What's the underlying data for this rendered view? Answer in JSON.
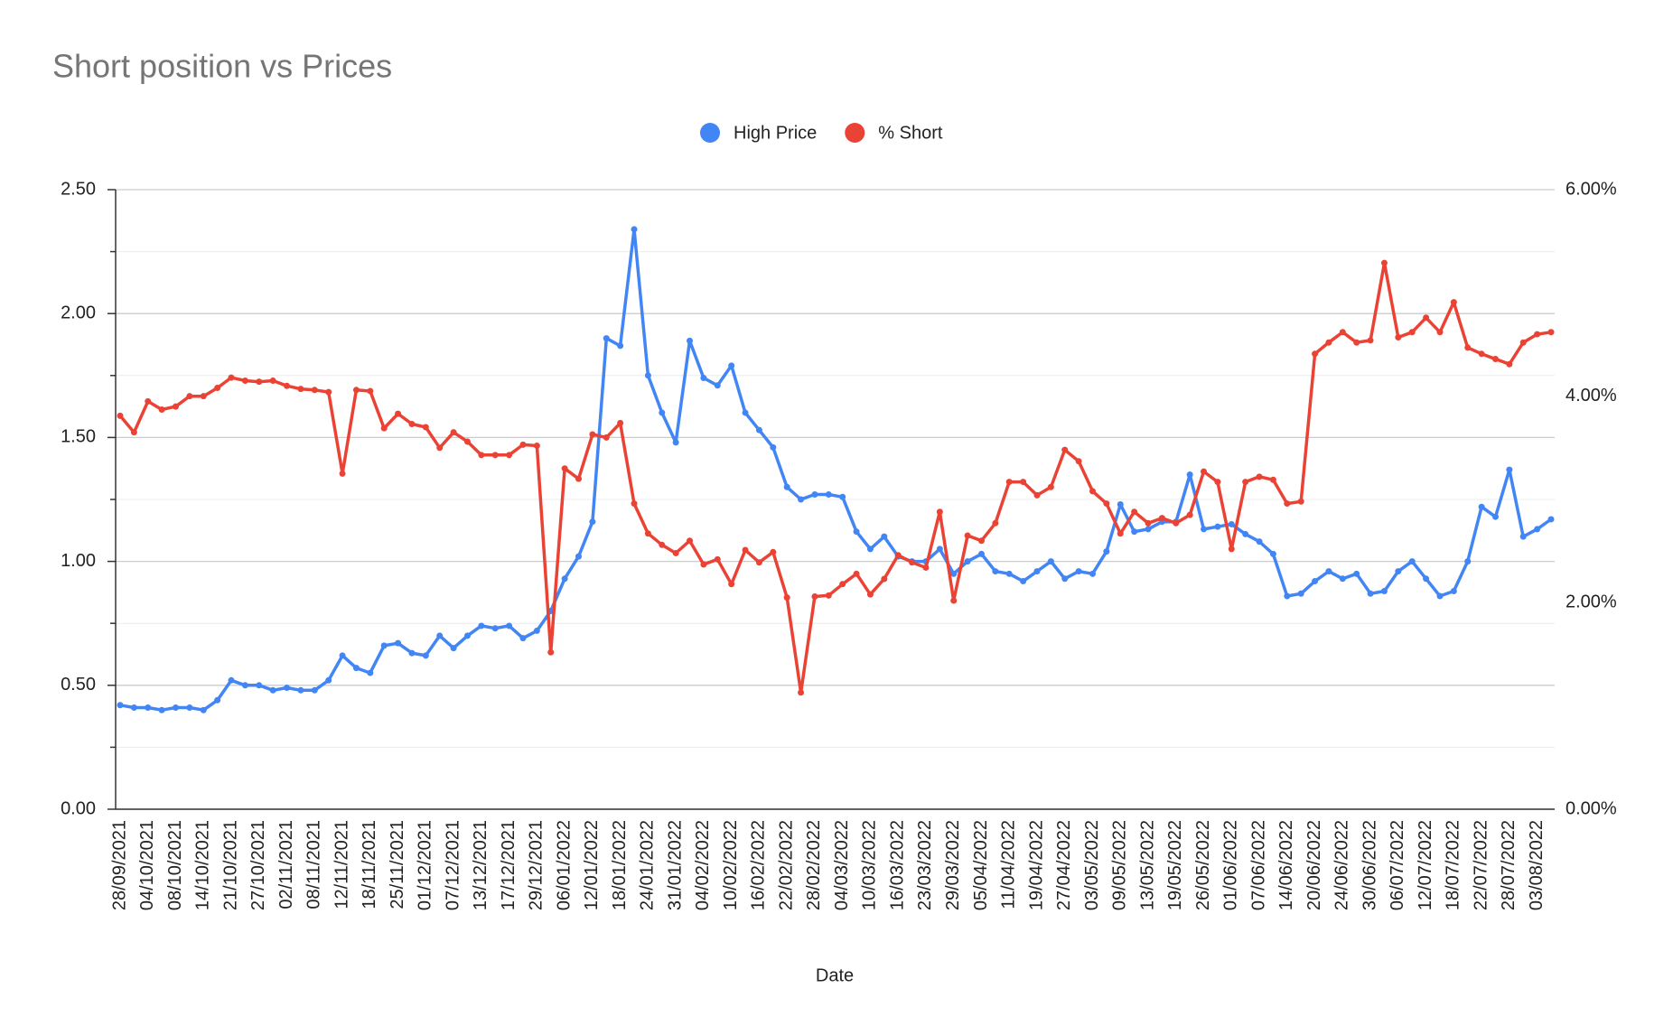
{
  "chart_data": {
    "type": "line",
    "title": "Short position vs Prices",
    "x_label": "Date",
    "categories": [
      "28/09/2021",
      null,
      "04/10/2021",
      null,
      "08/10/2021",
      null,
      "14/10/2021",
      null,
      "21/10/2021",
      null,
      "27/10/2021",
      null,
      "02/11/2021",
      null,
      "08/11/2021",
      null,
      "12/11/2021",
      null,
      "18/11/2021",
      null,
      "25/11/2021",
      null,
      "01/12/2021",
      null,
      "07/12/2021",
      null,
      "13/12/2021",
      null,
      "17/12/2021",
      null,
      "29/12/2021",
      null,
      "06/01/2022",
      null,
      "12/01/2022",
      null,
      "18/01/2022",
      null,
      "24/01/2022",
      null,
      "31/01/2022",
      null,
      "04/02/2022",
      null,
      "10/02/2022",
      null,
      "16/02/2022",
      null,
      "22/02/2022",
      null,
      "28/02/2022",
      null,
      "04/03/2022",
      null,
      "10/03/2022",
      null,
      "16/03/2022",
      null,
      "23/03/2022",
      null,
      "29/03/2022",
      null,
      "05/04/2022",
      null,
      "11/04/2022",
      null,
      "19/04/2022",
      null,
      "27/04/2022",
      null,
      "03/05/2022",
      null,
      "09/05/2022",
      null,
      "13/05/2022",
      null,
      "19/05/2022",
      null,
      "26/05/2022",
      null,
      "01/06/2022",
      null,
      "07/06/2022",
      null,
      "14/06/2022",
      null,
      "20/06/2022",
      null,
      "24/06/2022",
      null,
      "30/06/2022",
      null,
      "06/07/2022",
      null,
      "12/07/2022",
      null,
      "18/07/2022",
      null,
      "22/07/2022",
      null,
      "28/07/2022",
      null,
      "03/08/2022",
      null
    ],
    "series": [
      {
        "name": "High Price",
        "color": "#4285f4",
        "axis": "y",
        "values": [
          0.42,
          0.41,
          0.41,
          0.4,
          0.41,
          0.41,
          0.4,
          0.44,
          0.52,
          0.5,
          0.5,
          0.48,
          0.49,
          0.48,
          0.48,
          0.52,
          0.62,
          0.57,
          0.55,
          0.66,
          0.67,
          0.63,
          0.62,
          0.7,
          0.65,
          0.7,
          0.74,
          0.73,
          0.74,
          0.69,
          0.72,
          0.8,
          0.93,
          1.02,
          1.16,
          1.9,
          1.87,
          2.34,
          1.75,
          1.6,
          1.48,
          1.89,
          1.74,
          1.71,
          1.79,
          1.6,
          1.53,
          1.46,
          1.3,
          1.25,
          1.27,
          1.27,
          1.26,
          1.12,
          1.05,
          1.1,
          1.02,
          1.0,
          1.0,
          1.05,
          0.95,
          1.0,
          1.03,
          0.96,
          0.95,
          0.92,
          0.96,
          1.0,
          0.93,
          0.96,
          0.95,
          1.04,
          1.23,
          1.12,
          1.13,
          1.16,
          1.16,
          1.35,
          1.13,
          1.14,
          1.15,
          1.11,
          1.08,
          1.03,
          0.86,
          0.87,
          0.92,
          0.96,
          0.93,
          0.95,
          0.87,
          0.88,
          0.96,
          1.0,
          0.93,
          0.86,
          0.88,
          1.0,
          1.22,
          1.18,
          1.37,
          1.1,
          1.13,
          1.17
        ]
      },
      {
        "name": "% Short",
        "color": "#ea4335",
        "axis": "y2",
        "values": [
          3.81,
          3.65,
          3.95,
          3.87,
          3.9,
          4.0,
          4.0,
          4.08,
          4.18,
          4.15,
          4.14,
          4.15,
          4.1,
          4.07,
          4.06,
          4.04,
          3.25,
          4.06,
          4.05,
          3.69,
          3.83,
          3.73,
          3.7,
          3.5,
          3.65,
          3.56,
          3.43,
          3.43,
          3.43,
          3.53,
          3.52,
          1.52,
          3.3,
          3.2,
          3.63,
          3.6,
          3.74,
          2.96,
          2.67,
          2.56,
          2.48,
          2.6,
          2.37,
          2.42,
          2.18,
          2.51,
          2.39,
          2.49,
          2.05,
          1.13,
          2.06,
          2.07,
          2.18,
          2.28,
          2.08,
          2.23,
          2.46,
          2.39,
          2.34,
          2.88,
          2.02,
          2.65,
          2.6,
          2.77,
          3.17,
          3.17,
          3.04,
          3.12,
          3.48,
          3.37,
          3.08,
          2.96,
          2.67,
          2.88,
          2.77,
          2.82,
          2.77,
          2.85,
          3.27,
          3.17,
          2.52,
          3.17,
          3.22,
          3.19,
          2.96,
          2.98,
          4.41,
          4.52,
          4.62,
          4.52,
          4.54,
          5.29,
          4.57,
          4.62,
          4.76,
          4.62,
          4.91,
          4.47,
          4.41,
          4.36,
          4.31,
          4.52,
          4.6,
          4.62
        ]
      }
    ],
    "ylim": [
      0,
      2.5
    ],
    "yticks": [
      {
        "value": 0,
        "label": "0.00"
      },
      {
        "value": 0.5,
        "label": "0.50"
      },
      {
        "value": 1,
        "label": "1.00"
      },
      {
        "value": 1.5,
        "label": "1.50"
      },
      {
        "value": 2,
        "label": "2.00"
      },
      {
        "value": 2.5,
        "label": "2.50"
      }
    ],
    "y_minor_ticks": [
      0.25,
      0.75,
      1.25,
      1.75,
      2.25
    ],
    "y2lim": [
      0,
      6
    ],
    "y2ticks": [
      {
        "value": 0,
        "label": "0.00%"
      },
      {
        "value": 2,
        "label": "2.00%"
      },
      {
        "value": 4,
        "label": "4.00%"
      },
      {
        "value": 6,
        "label": "6.00%"
      }
    ],
    "grid": true,
    "legend": "top"
  }
}
